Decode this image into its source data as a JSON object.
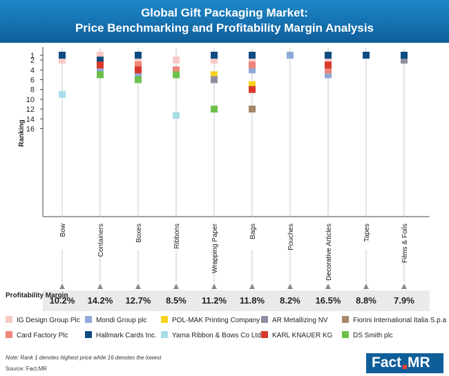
{
  "header": {
    "title_line1": "Global Gift Packaging Market:",
    "title_line2": "Price Benchmarking and Profitability Margin Analysis"
  },
  "chart_data": {
    "type": "scatter",
    "ylabel": "Ranking",
    "ylim": [
      16,
      1
    ],
    "y_ticks": [
      "1",
      "2",
      "4",
      "6",
      "8",
      "10",
      "12",
      "14",
      "16"
    ],
    "y_inverted": true,
    "categories": [
      "Bow",
      "Containers",
      "Boxes",
      "Ribbons",
      "Wrapping Paper",
      "Bags",
      "Pouches",
      "Decorative Articles",
      "Tapes",
      "Films & Foils"
    ],
    "series": [
      {
        "name": "IG Design Group Plc",
        "color": "#f7c9c6",
        "values": [
          2,
          1,
          2,
          2,
          2,
          2,
          null,
          2,
          null,
          null
        ]
      },
      {
        "name": "Mondi Group plc",
        "color": "#8fa9d8",
        "values": [
          null,
          4,
          5,
          null,
          null,
          4,
          1,
          5,
          null,
          null
        ]
      },
      {
        "name": "POL-MAK Printing Company",
        "color": "#f7d21e",
        "values": [
          null,
          null,
          null,
          null,
          5,
          7,
          null,
          null,
          null,
          null
        ]
      },
      {
        "name": "AR Metallizing NV",
        "color": "#8f8fa0",
        "values": [
          null,
          null,
          null,
          null,
          6,
          null,
          null,
          null,
          null,
          2
        ]
      },
      {
        "name": "Fiorini International Italia S.p.a",
        "color": "#a6876a",
        "values": [
          null,
          null,
          null,
          null,
          null,
          12,
          null,
          null,
          null,
          null
        ]
      },
      {
        "name": "Card Factory Plc",
        "color": "#ef8579",
        "values": [
          null,
          3,
          3,
          4,
          null,
          3,
          null,
          4,
          null,
          null
        ]
      },
      {
        "name": "Hallmark Cards Inc.",
        "color": "#0f4c81",
        "values": [
          1,
          2,
          1,
          null,
          1,
          1,
          null,
          1,
          1,
          1
        ]
      },
      {
        "name": "Yama Ribbon & Bows Co Ltd",
        "color": "#a8dde9",
        "values": [
          9,
          null,
          null,
          13.3,
          null,
          null,
          null,
          null,
          null,
          null
        ]
      },
      {
        "name": "KARL KNAUER KG",
        "color": "#d9392b",
        "values": [
          null,
          3,
          4,
          null,
          null,
          8,
          null,
          3,
          null,
          null
        ]
      },
      {
        "name": "DS Smith plc",
        "color": "#6cc04a",
        "values": [
          null,
          5,
          6,
          5,
          12,
          null,
          null,
          null,
          null,
          null
        ]
      }
    ],
    "grid": false
  },
  "margins": {
    "label": "Profitability Margin",
    "values": [
      "10.2%",
      "14.2%",
      "12.7%",
      "8.5%",
      "11.2%",
      "11.8%",
      "8.2%",
      "16.5%",
      "8.8%",
      "7.9%"
    ]
  },
  "legend": {
    "items": [
      {
        "label": "IG Design Group Plc",
        "color": "#f7c9c6"
      },
      {
        "label": "Mondi Group plc",
        "color": "#8fa9d8"
      },
      {
        "label": "POL-MAK Printing Company",
        "color": "#f7d21e"
      },
      {
        "label": "AR Metallizing NV",
        "color": "#8f8fa0"
      },
      {
        "label": "Fiorini International Italia S.p.a",
        "color": "#a6876a"
      },
      {
        "label": "Card Factory Plc",
        "color": "#ef8579"
      },
      {
        "label": "Hallmark Cards Inc.",
        "color": "#0f4c81"
      },
      {
        "label": "Yama Ribbon & Bows Co Ltd",
        "color": "#a8dde9"
      },
      {
        "label": "KARL KNAUER KG",
        "color": "#d9392b"
      },
      {
        "label": "DS Smith plc",
        "color": "#6cc04a"
      }
    ]
  },
  "note": "Note: Rank 1 denotes highest price while 16 denotes the lowest",
  "source": "Source: Fact.MR",
  "logo": {
    "part1": "Fact",
    "part2": "MR"
  }
}
